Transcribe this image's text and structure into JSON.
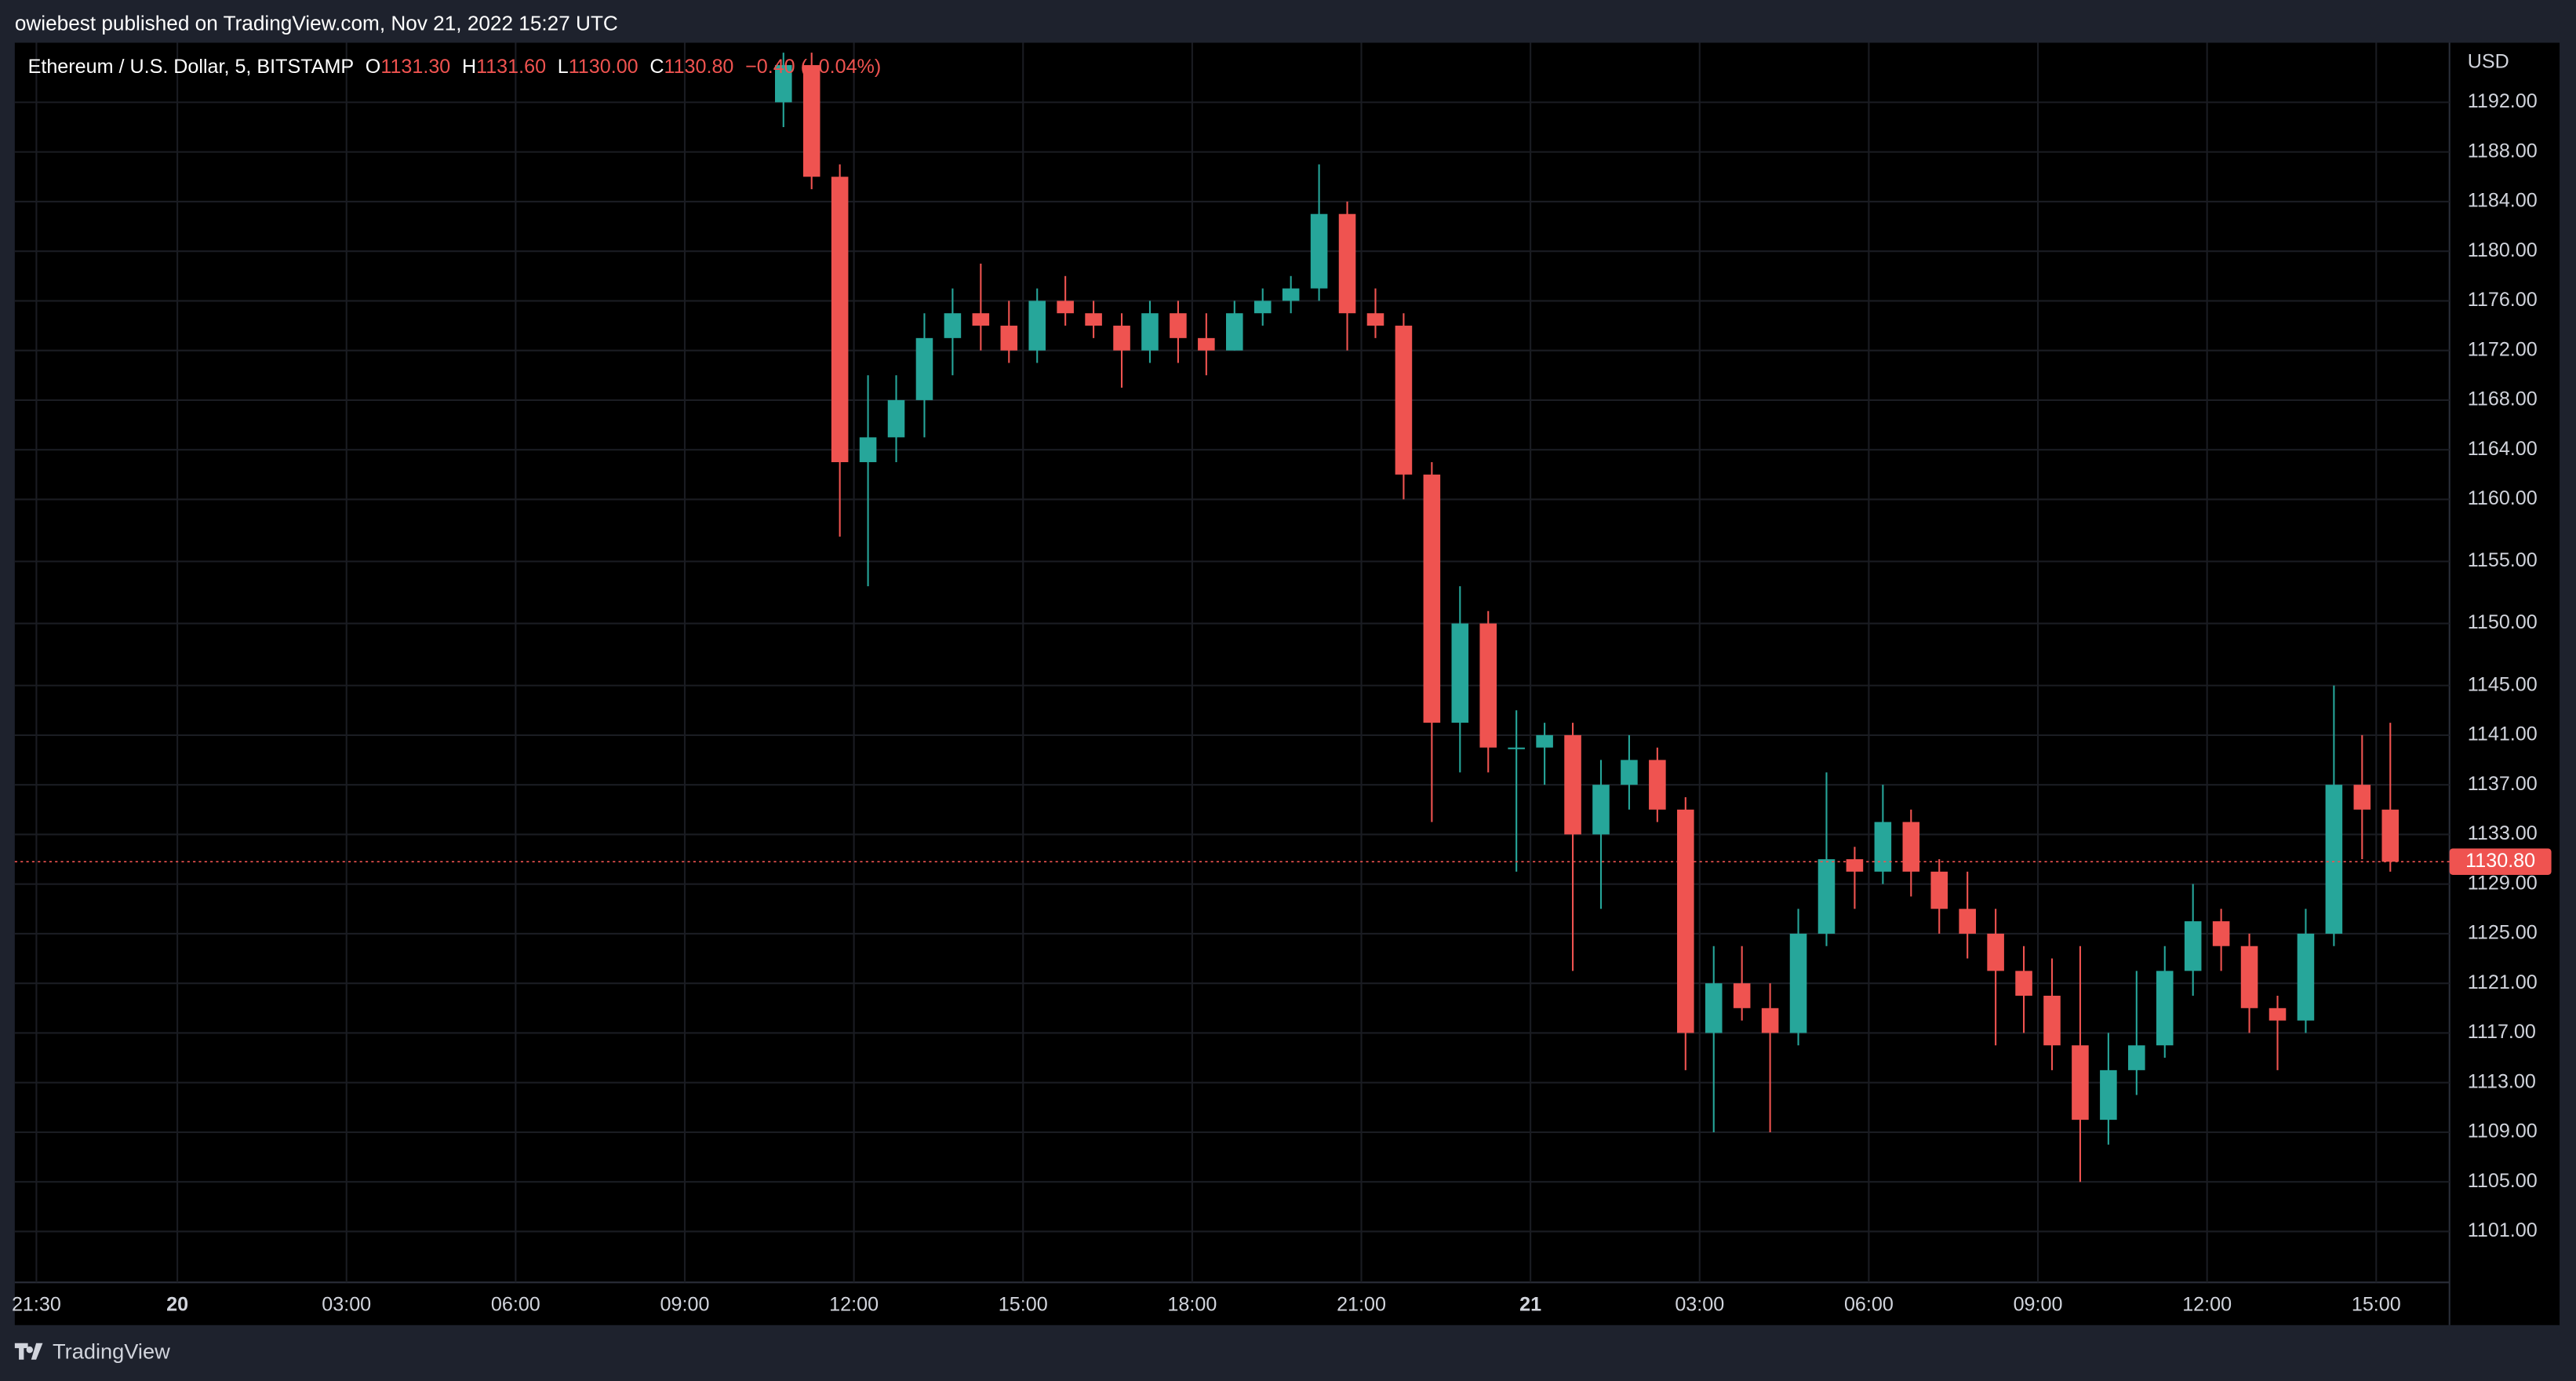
{
  "header": {
    "byline": "owiebest published on TradingView.com, Nov 21, 2022 15:27 UTC"
  },
  "footer": {
    "brand": "TradingView"
  },
  "chart_data": {
    "type": "candlestick",
    "legend": {
      "symbol": "Ethereum / U.S. Dollar, 5, BITSTAMP",
      "ohlc": [
        {
          "key": "O",
          "value": "1131.30"
        },
        {
          "key": "H",
          "value": "1131.60"
        },
        {
          "key": "L",
          "value": "1130.00"
        },
        {
          "key": "C",
          "value": "1130.80"
        }
      ],
      "change": "−0.40 (−0.04%)"
    },
    "y_unit": "USD",
    "up_color": "#26a69a",
    "down_color": "#ef5350",
    "grid": true,
    "x": [
      "2022-11-20T10:30",
      "2022-11-20T11:00",
      "2022-11-20T11:30",
      "2022-11-20T12:00",
      "2022-11-20T12:30",
      "2022-11-20T13:00",
      "2022-11-20T13:30",
      "2022-11-20T14:00",
      "2022-11-20T14:30",
      "2022-11-20T15:00",
      "2022-11-20T15:30",
      "2022-11-20T16:00",
      "2022-11-20T16:30",
      "2022-11-20T17:00",
      "2022-11-20T17:30",
      "2022-11-20T18:00",
      "2022-11-20T18:30",
      "2022-11-20T19:00",
      "2022-11-20T19:30",
      "2022-11-20T20:00",
      "2022-11-20T20:30",
      "2022-11-20T21:00",
      "2022-11-20T21:30",
      "2022-11-20T22:00",
      "2022-11-20T22:30",
      "2022-11-20T23:00",
      "2022-11-20T23:30",
      "2022-11-21T00:00",
      "2022-11-21T00:30",
      "2022-11-21T01:00",
      "2022-11-21T01:30",
      "2022-11-21T02:00",
      "2022-11-21T02:30",
      "2022-11-21T03:00",
      "2022-11-21T03:30",
      "2022-11-21T04:00",
      "2022-11-21T04:30",
      "2022-11-21T05:00",
      "2022-11-21T05:30",
      "2022-11-21T06:00",
      "2022-11-21T06:30",
      "2022-11-21T07:00",
      "2022-11-21T07:30",
      "2022-11-21T08:00",
      "2022-11-21T08:30",
      "2022-11-21T09:00",
      "2022-11-21T09:30",
      "2022-11-21T10:00",
      "2022-11-21T10:30",
      "2022-11-21T11:00",
      "2022-11-21T11:30",
      "2022-11-21T12:00",
      "2022-11-21T12:30",
      "2022-11-21T13:00",
      "2022-11-21T13:30",
      "2022-11-21T14:00",
      "2022-11-21T14:30",
      "2022-11-21T15:00"
    ],
    "open": [
      1192,
      1195,
      1186,
      1163,
      1165,
      1168,
      1173,
      1175,
      1174,
      1172,
      1176,
      1175,
      1174,
      1172,
      1175,
      1173,
      1172,
      1175,
      1176,
      1177,
      1183,
      1175,
      1174,
      1162,
      1142,
      1150,
      1140,
      1140,
      1141,
      1133,
      1137,
      1139,
      1135,
      1117,
      1121,
      1119,
      1117,
      1125,
      1131,
      1130,
      1134,
      1130,
      1127,
      1125,
      1122,
      1120,
      1116,
      1110,
      1114,
      1116,
      1122,
      1126,
      1124,
      1119,
      1118,
      1125,
      1137,
      1135
    ],
    "high": [
      1196,
      1196,
      1187,
      1170,
      1170,
      1175,
      1177,
      1179,
      1176,
      1177,
      1178,
      1176,
      1175,
      1176,
      1176,
      1175,
      1176,
      1177,
      1178,
      1187,
      1184,
      1177,
      1175,
      1163,
      1153,
      1151,
      1143,
      1142,
      1142,
      1139,
      1141,
      1140,
      1136,
      1124,
      1124,
      1121,
      1127,
      1138,
      1132,
      1137,
      1135,
      1131,
      1130,
      1127,
      1124,
      1123,
      1124,
      1117,
      1122,
      1124,
      1129,
      1127,
      1125,
      1120,
      1127,
      1145,
      1141,
      1142
    ],
    "low": [
      1190,
      1185,
      1157,
      1153,
      1163,
      1165,
      1170,
      1172,
      1171,
      1171,
      1174,
      1173,
      1169,
      1171,
      1171,
      1170,
      1172,
      1174,
      1175,
      1176,
      1172,
      1173,
      1160,
      1134,
      1138,
      1138,
      1130,
      1137,
      1122,
      1127,
      1135,
      1134,
      1114,
      1109,
      1118,
      1109,
      1116,
      1124,
      1127,
      1129,
      1128,
      1125,
      1123,
      1116,
      1117,
      1114,
      1105,
      1108,
      1112,
      1115,
      1120,
      1122,
      1117,
      1114,
      1117,
      1124,
      1131,
      1130
    ],
    "close": [
      1195,
      1186,
      1163,
      1165,
      1168,
      1173,
      1175,
      1174,
      1172,
      1176,
      1175,
      1174,
      1172,
      1175,
      1173,
      1172,
      1175,
      1176,
      1177,
      1183,
      1175,
      1174,
      1162,
      1142,
      1150,
      1140,
      1140,
      1141,
      1133,
      1137,
      1139,
      1135,
      1117,
      1121,
      1119,
      1117,
      1125,
      1131,
      1130,
      1134,
      1130,
      1127,
      1125,
      1122,
      1120,
      1116,
      1110,
      1114,
      1116,
      1122,
      1126,
      1124,
      1119,
      1118,
      1125,
      1137,
      1135,
      1130.8
    ],
    "last_price": {
      "value": 1130.8,
      "label": "1130.80"
    },
    "xlim": [
      "2022-11-19T21:07",
      "2022-11-21T16:18"
    ],
    "xticks": [
      {
        "value": "2022-11-19T21:30",
        "label": "21:30"
      },
      {
        "value": "2022-11-20T00:00",
        "label": "20"
      },
      {
        "value": "2022-11-20T03:00",
        "label": "03:00"
      },
      {
        "value": "2022-11-20T06:00",
        "label": "06:00"
      },
      {
        "value": "2022-11-20T09:00",
        "label": "09:00"
      },
      {
        "value": "2022-11-20T12:00",
        "label": "12:00"
      },
      {
        "value": "2022-11-20T15:00",
        "label": "15:00"
      },
      {
        "value": "2022-11-20T18:00",
        "label": "18:00"
      },
      {
        "value": "2022-11-20T21:00",
        "label": "21:00"
      },
      {
        "value": "2022-11-21T00:00",
        "label": "21"
      },
      {
        "value": "2022-11-21T03:00",
        "label": "03:00"
      },
      {
        "value": "2022-11-21T06:00",
        "label": "06:00"
      },
      {
        "value": "2022-11-21T09:00",
        "label": "09:00"
      },
      {
        "value": "2022-11-21T12:00",
        "label": "12:00"
      },
      {
        "value": "2022-11-21T15:00",
        "label": "15:00"
      }
    ],
    "ylim": [
      1096.9,
      1196.8
    ],
    "yticks": [
      {
        "value": 1192,
        "label": "1192.00"
      },
      {
        "value": 1188,
        "label": "1188.00"
      },
      {
        "value": 1184,
        "label": "1184.00"
      },
      {
        "value": 1180,
        "label": "1180.00"
      },
      {
        "value": 1176,
        "label": "1176.00"
      },
      {
        "value": 1172,
        "label": "1172.00"
      },
      {
        "value": 1168,
        "label": "1168.00"
      },
      {
        "value": 1164,
        "label": "1164.00"
      },
      {
        "value": 1160,
        "label": "1160.00"
      },
      {
        "value": 1155,
        "label": "1155.00"
      },
      {
        "value": 1150,
        "label": "1150.00"
      },
      {
        "value": 1145,
        "label": "1145.00"
      },
      {
        "value": 1141,
        "label": "1141.00"
      },
      {
        "value": 1137,
        "label": "1137.00"
      },
      {
        "value": 1133,
        "label": "1133.00"
      },
      {
        "value": 1129,
        "label": "1129.00"
      },
      {
        "value": 1125,
        "label": "1125.00"
      },
      {
        "value": 1121,
        "label": "1121.00"
      },
      {
        "value": 1117,
        "label": "1117.00"
      },
      {
        "value": 1113,
        "label": "1113.00"
      },
      {
        "value": 1109,
        "label": "1109.00"
      },
      {
        "value": 1105,
        "label": "1105.00"
      },
      {
        "value": 1101,
        "label": "1101.00"
      }
    ]
  }
}
